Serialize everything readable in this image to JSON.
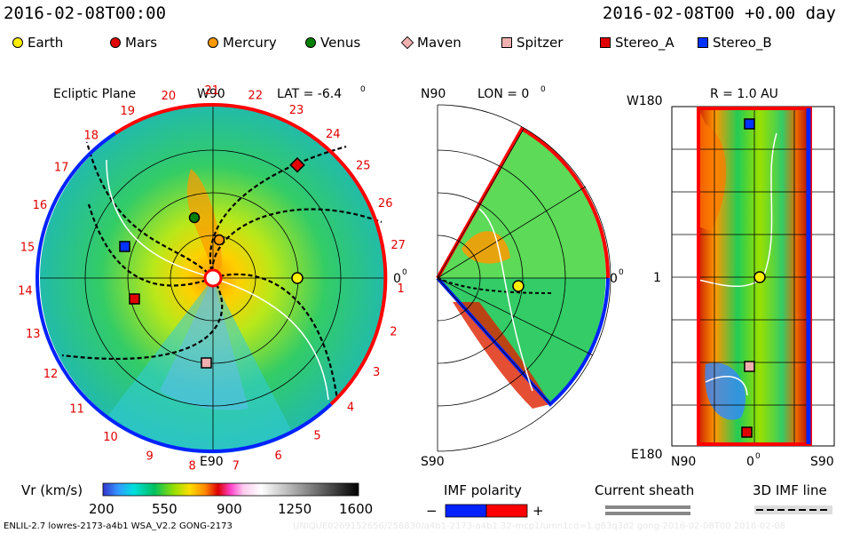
{
  "header": {
    "datetime": "2016-02-08T00:00",
    "run_info": "2016-02-08T00 +0.00 day"
  },
  "legend": [
    {
      "label": "Earth",
      "color": "#ffee00",
      "shape": "circle"
    },
    {
      "label": "Mars",
      "color": "#e00000",
      "shape": "circle"
    },
    {
      "label": "Mercury",
      "color": "#ff9900",
      "shape": "circle"
    },
    {
      "label": "Venus",
      "color": "#008000",
      "shape": "circle"
    },
    {
      "label": "Maven",
      "color": "#f0b0b0",
      "shape": "diamond"
    },
    {
      "label": "Spitzer",
      "color": "#f0b0b0",
      "shape": "square"
    },
    {
      "label": "Stereo_A",
      "color": "#e00000",
      "shape": "square"
    },
    {
      "label": "Stereo_B",
      "color": "#0033ff",
      "shape": "square"
    }
  ],
  "ecliptic_panel": {
    "title": "Ecliptic Plane",
    "top_label": "W90",
    "lat_label": "LAT = -6.4",
    "lat_degree": "0",
    "bottom_label": "E90",
    "right_label": "0",
    "right_degree": "0",
    "rotation_numbers": [
      "19",
      "20",
      "21",
      "22",
      "23",
      "24",
      "25",
      "26",
      "27",
      "1",
      "2",
      "3",
      "4",
      "5",
      "6",
      "7",
      "8",
      "9",
      "10",
      "11",
      "12",
      "13",
      "14",
      "15",
      "16",
      "17",
      "18"
    ]
  },
  "meridional_panel": {
    "top_label": "N90",
    "lon_label": "LON = 0",
    "lon_degree": "0",
    "bottom_label": "S90",
    "right_label": "0",
    "right_degree": "0"
  },
  "radial_panel": {
    "r_label": "R = 1.0 AU",
    "top_label": "W180",
    "middle_label": "1",
    "bottom_label": "E180",
    "x_left": "N90",
    "x_mid": "0",
    "x_mid_degree": "0",
    "x_right": "S90"
  },
  "colorbar": {
    "label": "Vr (km/s)",
    "ticks": [
      "200",
      "550",
      "900",
      "1250",
      "1600"
    ]
  },
  "imf_polarity": {
    "label": "IMF polarity",
    "minus": "−",
    "plus": "+",
    "neg_color": "#0022ff",
    "pos_color": "#ff0000"
  },
  "current_sheath": {
    "label": "Current sheath"
  },
  "imf_line": {
    "label": "3D IMF line"
  },
  "footer": {
    "model": "ENLIL-2.7 lowres-2173-a4b1 WSA_V2.2 GONG-2173",
    "watermark": "UNIQUE0269152656/256830/a4b1-2173-a4b1.32-mcp1/umn1cd=1.g83q3d2 gong-2016-02-08T00 2016-02-08"
  }
}
